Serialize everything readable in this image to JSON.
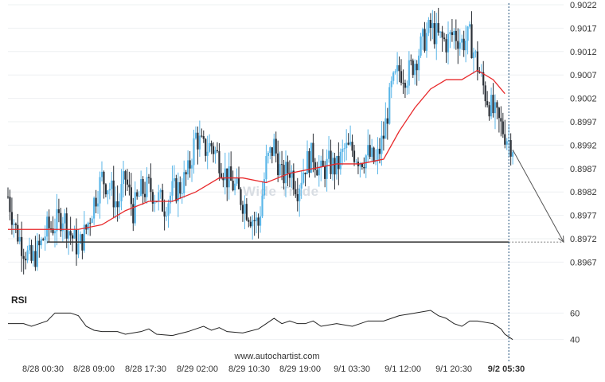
{
  "chart_data": {
    "type": "candlestick",
    "instrument_watermark": "Wide Trade",
    "source": "www.autochartist.com",
    "y_axis": {
      "side": "right",
      "ticks": [
        "0.9022",
        "0.9017",
        "0.9012",
        "0.9007",
        "0.9002",
        "0.8997",
        "0.8992",
        "0.8987",
        "0.8982",
        "0.8977",
        "0.8972",
        "0.8967"
      ],
      "range": [
        0.89635,
        0.9022
      ]
    },
    "x_axis": {
      "ticks": [
        "8/28 00:30",
        "8/28 09:00",
        "8/28 17:30",
        "8/29 02:00",
        "8/29 10:30",
        "8/29 19:00",
        "9/1 03:30",
        "9/1 12:00",
        "9/1 20:30",
        "9/2 05:30"
      ],
      "highlighted_tick": "9/2 05:30"
    },
    "close_path": [
      [
        0,
        0.8981
      ],
      [
        2,
        0.8974
      ],
      [
        4,
        0.897
      ],
      [
        6,
        0.8967
      ],
      [
        8,
        0.897
      ],
      [
        10,
        0.8974
      ],
      [
        12,
        0.8975
      ],
      [
        14,
        0.8977
      ],
      [
        16,
        0.8973
      ],
      [
        18,
        0.897
      ],
      [
        20,
        0.8974
      ],
      [
        22,
        0.898
      ],
      [
        24,
        0.8985
      ],
      [
        26,
        0.8983
      ],
      [
        28,
        0.8979
      ],
      [
        30,
        0.8985
      ],
      [
        32,
        0.8978
      ],
      [
        34,
        0.8982
      ],
      [
        36,
        0.8983
      ],
      [
        38,
        0.8981
      ],
      [
        40,
        0.8979
      ],
      [
        42,
        0.8982
      ],
      [
        44,
        0.8983
      ],
      [
        46,
        0.8986
      ],
      [
        48,
        0.8994
      ],
      [
        50,
        0.8991
      ],
      [
        52,
        0.8992
      ],
      [
        54,
        0.8989
      ],
      [
        56,
        0.8985
      ],
      [
        58,
        0.8983
      ],
      [
        60,
        0.898
      ],
      [
        62,
        0.8977
      ],
      [
        64,
        0.8975
      ],
      [
        66,
        0.8988
      ],
      [
        68,
        0.8992
      ],
      [
        70,
        0.8985
      ],
      [
        72,
        0.8987
      ],
      [
        74,
        0.8983
      ],
      [
        76,
        0.8988
      ],
      [
        78,
        0.899
      ],
      [
        80,
        0.8986
      ],
      [
        82,
        0.8988
      ],
      [
        84,
        0.8987
      ],
      [
        86,
        0.8991
      ],
      [
        88,
        0.8991
      ],
      [
        90,
        0.8989
      ],
      [
        92,
        0.899
      ],
      [
        94,
        0.8988
      ],
      [
        96,
        0.8994
      ],
      [
        98,
        0.9004
      ],
      [
        100,
        0.9008
      ],
      [
        102,
        0.9007
      ],
      [
        104,
        0.901
      ],
      [
        106,
        0.9014
      ],
      [
        108,
        0.9017
      ],
      [
        110,
        0.9015
      ],
      [
        112,
        0.9014
      ],
      [
        114,
        0.9016
      ],
      [
        116,
        0.9014
      ],
      [
        118,
        0.9015
      ],
      [
        120,
        0.9009
      ],
      [
        122,
        0.9003
      ],
      [
        124,
        0.8999
      ],
      [
        126,
        0.8996
      ],
      [
        128,
        0.8993
      ],
      [
        129,
        0.8992
      ]
    ],
    "moving_average": {
      "color": "#e8292b",
      "points": [
        [
          0,
          0.8974
        ],
        [
          6,
          0.8974
        ],
        [
          12,
          0.8974
        ],
        [
          18,
          0.8974
        ],
        [
          24,
          0.8975
        ],
        [
          30,
          0.8978
        ],
        [
          36,
          0.898
        ],
        [
          42,
          0.898
        ],
        [
          48,
          0.8982
        ],
        [
          54,
          0.8985
        ],
        [
          60,
          0.8985
        ],
        [
          66,
          0.8984
        ],
        [
          72,
          0.8986
        ],
        [
          78,
          0.8987
        ],
        [
          84,
          0.8988
        ],
        [
          90,
          0.8988
        ],
        [
          96,
          0.8989
        ],
        [
          100,
          0.8995
        ],
        [
          104,
          0.9
        ],
        [
          108,
          0.9004
        ],
        [
          112,
          0.9006
        ],
        [
          116,
          0.9006
        ],
        [
          120,
          0.9008
        ],
        [
          124,
          0.9006
        ],
        [
          127,
          0.9003
        ]
      ]
    },
    "candle_colors": {
      "up": "#5ab6e8",
      "down": "#2a2f36"
    },
    "support_line": {
      "value": 0.89713,
      "x_start": 10,
      "color": "#333333"
    },
    "forecast": {
      "from": [
        129,
        0.8991
      ],
      "to": [
        142,
        0.89713
      ],
      "color": "#555555"
    },
    "current_time_marker": {
      "x": 128,
      "color": "#1f4f79"
    },
    "x_range": [
      0,
      142
    ],
    "rsi": {
      "label": "RSI",
      "ticks": [
        "60",
        "40"
      ],
      "range": [
        32,
        68
      ],
      "values": [
        [
          0,
          52
        ],
        [
          4,
          52
        ],
        [
          6,
          50
        ],
        [
          8,
          52
        ],
        [
          10,
          54
        ],
        [
          12,
          60
        ],
        [
          14,
          60
        ],
        [
          16,
          60
        ],
        [
          18,
          58
        ],
        [
          20,
          50
        ],
        [
          22,
          47
        ],
        [
          24,
          46
        ],
        [
          28,
          46
        ],
        [
          30,
          44
        ],
        [
          34,
          46
        ],
        [
          36,
          48
        ],
        [
          38,
          44
        ],
        [
          42,
          43
        ],
        [
          46,
          46
        ],
        [
          48,
          48
        ],
        [
          50,
          50
        ],
        [
          52,
          47
        ],
        [
          54,
          49
        ],
        [
          56,
          46
        ],
        [
          60,
          45
        ],
        [
          64,
          48
        ],
        [
          66,
          52
        ],
        [
          68,
          56
        ],
        [
          70,
          52
        ],
        [
          72,
          54
        ],
        [
          74,
          52
        ],
        [
          76,
          52
        ],
        [
          78,
          54
        ],
        [
          80,
          50
        ],
        [
          84,
          52
        ],
        [
          88,
          50
        ],
        [
          90,
          52
        ],
        [
          92,
          54
        ],
        [
          96,
          54
        ],
        [
          98,
          56
        ],
        [
          100,
          58
        ],
        [
          104,
          60
        ],
        [
          108,
          62
        ],
        [
          110,
          58
        ],
        [
          112,
          56
        ],
        [
          114,
          52
        ],
        [
          116,
          50
        ],
        [
          118,
          54
        ],
        [
          120,
          54
        ],
        [
          124,
          52
        ],
        [
          126,
          48
        ],
        [
          127,
          44
        ],
        [
          128,
          42
        ],
        [
          129,
          40
        ]
      ]
    }
  }
}
